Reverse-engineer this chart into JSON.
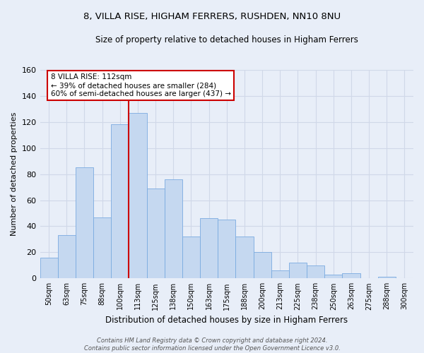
{
  "title": "8, VILLA RISE, HIGHAM FERRERS, RUSHDEN, NN10 8NU",
  "subtitle": "Size of property relative to detached houses in Higham Ferrers",
  "xlabel": "Distribution of detached houses by size in Higham Ferrers",
  "ylabel": "Number of detached properties",
  "bar_labels": [
    "50sqm",
    "63sqm",
    "75sqm",
    "88sqm",
    "100sqm",
    "113sqm",
    "125sqm",
    "138sqm",
    "150sqm",
    "163sqm",
    "175sqm",
    "188sqm",
    "200sqm",
    "213sqm",
    "225sqm",
    "238sqm",
    "250sqm",
    "263sqm",
    "275sqm",
    "288sqm",
    "300sqm"
  ],
  "bar_values": [
    16,
    33,
    85,
    47,
    118,
    127,
    69,
    76,
    32,
    46,
    45,
    32,
    20,
    6,
    12,
    10,
    3,
    4,
    0,
    1,
    0
  ],
  "bar_color": "#c5d8f0",
  "bar_edge_color": "#7aabe0",
  "highlight_bar_index": 5,
  "highlight_line_color": "#cc0000",
  "annotation_line1": "8 VILLA RISE: 112sqm",
  "annotation_line2": "← 39% of detached houses are smaller (284)",
  "annotation_line3": "60% of semi-detached houses are larger (437) →",
  "annotation_box_color": "#ffffff",
  "annotation_box_edge_color": "#cc0000",
  "ylim": [
    0,
    160
  ],
  "yticks": [
    0,
    20,
    40,
    60,
    80,
    100,
    120,
    140,
    160
  ],
  "grid_color": "#d0d8e8",
  "background_color": "#e8eef8",
  "footer_line1": "Contains HM Land Registry data © Crown copyright and database right 2024.",
  "footer_line2": "Contains public sector information licensed under the Open Government Licence v3.0."
}
